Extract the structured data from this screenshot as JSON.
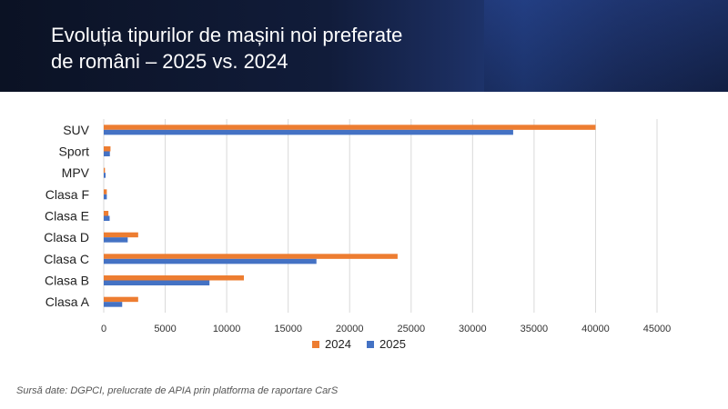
{
  "header": {
    "title": "Evoluția tipurilor de mașini noi preferate\nde români – 2025 vs. 2024"
  },
  "source": "Sursă date: DGPCI, prelucrate de APIA prin platforma de raportare CarS",
  "colors": {
    "series_2024": "#ed7d31",
    "series_2025": "#4472c4",
    "grid": "#d9d9d9"
  },
  "chart_data": {
    "type": "bar",
    "orientation": "horizontal",
    "categories": [
      "SUV",
      "Sport",
      "MPV",
      "Clasa F",
      "Clasa E",
      "Clasa D",
      "Clasa C",
      "Clasa B",
      "Clasa A"
    ],
    "series": [
      {
        "name": "2024",
        "values": [
          40000,
          550,
          100,
          250,
          380,
          2800,
          23900,
          11400,
          2800
        ]
      },
      {
        "name": "2025",
        "values": [
          33300,
          500,
          150,
          250,
          480,
          1950,
          17300,
          8600,
          1500
        ]
      }
    ],
    "xlim": [
      0,
      45000
    ],
    "xticks": [
      "0",
      "5000",
      "10000",
      "15000",
      "20000",
      "25000",
      "30000",
      "35000",
      "40000",
      "45000"
    ],
    "grid": "vertical",
    "legend": "bottom"
  }
}
